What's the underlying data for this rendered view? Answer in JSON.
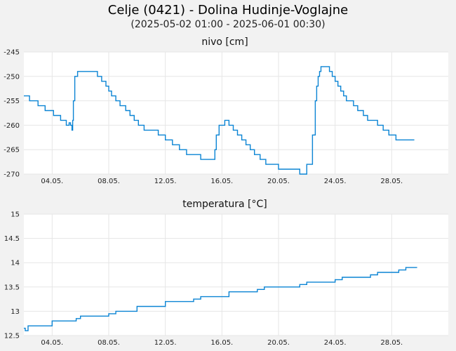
{
  "title": "Celje (0421) - Dolina Hudinje-Voglajne",
  "subtitle": "(2025-05-02 01:00 - 2025-06-01 00:30)",
  "colors": {
    "line": "#0a84d4",
    "plot_bg": "#ffffff",
    "page_bg": "#f2f2f2",
    "grid": "#e6e6e6"
  },
  "chart_data": [
    {
      "type": "line",
      "title": "nivo [cm]",
      "x_ticks": [
        "04.05.",
        "08.05.",
        "12.05.",
        "16.05.",
        "20.05.",
        "24.05.",
        "28.05."
      ],
      "x_tick_days": [
        4,
        8,
        12,
        16,
        20,
        24,
        28
      ],
      "y_ticks": [
        "-245",
        "-250",
        "-255",
        "-260",
        "-265",
        "-270"
      ],
      "y_tick_values": [
        -245,
        -250,
        -255,
        -260,
        -265,
        -270
      ],
      "xlim": [
        2.0,
        32.0
      ],
      "ylim": [
        -270,
        -245
      ],
      "grid": true,
      "x_unit": "day of May 2025",
      "series": [
        {
          "x": [
            2.0,
            2.3,
            2.4,
            2.9,
            3.0,
            3.4,
            3.5,
            4.0,
            4.1,
            4.5,
            4.6,
            4.9,
            5.0,
            5.1,
            5.2,
            5.3,
            5.4,
            5.45,
            5.5,
            5.6,
            5.8,
            5.95,
            6.0,
            6.1,
            6.3,
            6.5,
            7.0,
            7.2,
            7.5,
            7.8,
            8.0,
            8.2,
            8.5,
            8.8,
            9.2,
            9.5,
            9.8,
            10.1,
            10.5,
            11.0,
            11.5,
            12.0,
            12.5,
            13.0,
            13.5,
            14.0,
            14.5,
            15.0,
            15.3,
            15.5,
            15.6,
            15.8,
            16.1,
            16.2,
            16.3,
            16.5,
            16.8,
            17.1,
            17.4,
            17.7,
            18.0,
            18.3,
            18.7,
            19.1,
            19.5,
            20.0,
            20.5,
            21.0,
            21.5,
            22.0,
            22.4,
            22.6,
            22.7,
            22.8,
            22.9,
            23.0,
            23.2,
            23.4,
            23.6,
            23.8,
            24.0,
            24.2,
            24.4,
            24.6,
            24.8,
            25.0,
            25.3,
            25.6,
            26.0,
            26.3,
            26.6,
            27.0,
            27.4,
            27.8,
            28.3,
            28.7,
            29.0,
            29.3,
            29.6
          ],
          "y": [
            -254,
            -254,
            -255,
            -255,
            -256,
            -256,
            -257,
            -257,
            -258,
            -258,
            -259,
            -259,
            -260,
            -260,
            -259.5,
            -260,
            -261,
            -259,
            -255,
            -250,
            -249,
            -249,
            -249,
            -249,
            -249,
            -249,
            -249,
            -250,
            -251,
            -252,
            -253,
            -254,
            -255,
            -256,
            -257,
            -258,
            -259,
            -260,
            -261,
            -261,
            -262,
            -263,
            -264,
            -265,
            -266,
            -266,
            -267,
            -267,
            -267,
            -265,
            -262,
            -260,
            -260,
            -259,
            -259,
            -260,
            -261,
            -262,
            -263,
            -264,
            -265,
            -266,
            -267,
            -268,
            -268,
            -269,
            -269,
            -269,
            -270,
            -268,
            -262,
            -255,
            -252,
            -250,
            -249,
            -248,
            -248,
            -248,
            -249,
            -250,
            -251,
            -252,
            -253,
            -254,
            -255,
            -255,
            -256,
            -257,
            -258,
            -259,
            -259,
            -260,
            -261,
            -262,
            -263,
            -263,
            -263,
            -263,
            -263
          ]
        }
      ]
    },
    {
      "type": "line",
      "title": "temperatura [°C]",
      "x_ticks": [
        "04.05.",
        "08.05.",
        "12.05.",
        "16.05.",
        "20.05.",
        "24.05.",
        "28.05."
      ],
      "x_tick_days": [
        4,
        8,
        12,
        16,
        20,
        24,
        28
      ],
      "y_ticks": [
        "15",
        "14.5",
        "14",
        "13.5",
        "13",
        "12.5"
      ],
      "y_tick_values": [
        15,
        14.5,
        14,
        13.5,
        13,
        12.5
      ],
      "xlim": [
        2.0,
        32.0
      ],
      "ylim": [
        12.5,
        15
      ],
      "grid": true,
      "x_unit": "day of May 2025",
      "series": [
        {
          "x": [
            2.0,
            2.1,
            2.3,
            2.5,
            2.7,
            3.0,
            3.3,
            3.6,
            4.0,
            4.3,
            4.6,
            5.0,
            5.3,
            5.7,
            6.0,
            6.5,
            7.0,
            7.5,
            8.0,
            8.5,
            9.0,
            9.5,
            10.0,
            10.5,
            11.0,
            11.5,
            12.0,
            12.5,
            13.0,
            13.5,
            14.0,
            14.5,
            15.0,
            15.5,
            16.0,
            16.5,
            17.0,
            17.5,
            18.0,
            18.5,
            19.0,
            19.5,
            20.0,
            20.5,
            21.0,
            21.5,
            22.0,
            22.5,
            23.0,
            23.5,
            24.0,
            24.5,
            25.0,
            25.5,
            26.0,
            26.5,
            27.0,
            27.5,
            28.0,
            28.5,
            29.0,
            29.5,
            29.8
          ],
          "y": [
            12.65,
            12.6,
            12.7,
            12.7,
            12.7,
            12.7,
            12.7,
            12.7,
            12.8,
            12.8,
            12.8,
            12.8,
            12.8,
            12.85,
            12.9,
            12.9,
            12.9,
            12.9,
            12.95,
            13.0,
            13.0,
            13.0,
            13.1,
            13.1,
            13.1,
            13.1,
            13.2,
            13.2,
            13.2,
            13.2,
            13.25,
            13.3,
            13.3,
            13.3,
            13.3,
            13.4,
            13.4,
            13.4,
            13.4,
            13.45,
            13.5,
            13.5,
            13.5,
            13.5,
            13.5,
            13.55,
            13.6,
            13.6,
            13.6,
            13.6,
            13.65,
            13.7,
            13.7,
            13.7,
            13.7,
            13.75,
            13.8,
            13.8,
            13.8,
            13.85,
            13.9,
            13.9,
            13.9
          ]
        }
      ]
    }
  ]
}
